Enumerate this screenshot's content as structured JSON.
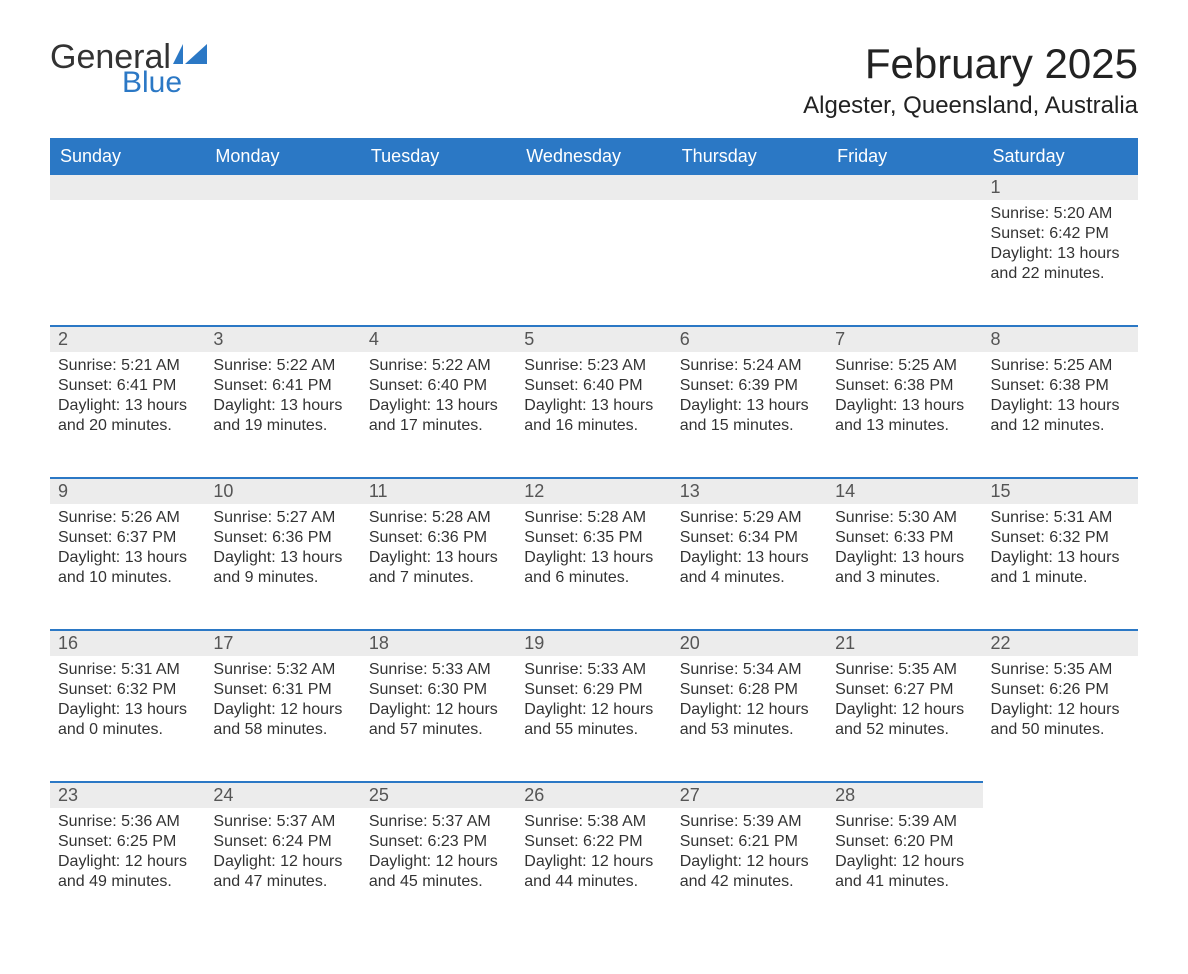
{
  "logo": {
    "word1": "General",
    "word2": "Blue"
  },
  "title": "February 2025",
  "location": "Algester, Queensland, Australia",
  "colors": {
    "brand_blue": "#2b78c5",
    "header_bg": "#2b78c5",
    "header_text": "#ffffff",
    "daynum_bg": "#ececec",
    "row_border": "#2b78c5",
    "body_text": "#333333",
    "page_bg": "#ffffff"
  },
  "typography": {
    "title_fontsize": 42,
    "location_fontsize": 24,
    "header_fontsize": 18,
    "daynum_fontsize": 18,
    "cell_fontsize": 16
  },
  "day_headers": [
    "Sunday",
    "Monday",
    "Tuesday",
    "Wednesday",
    "Thursday",
    "Friday",
    "Saturday"
  ],
  "weeks": [
    [
      null,
      null,
      null,
      null,
      null,
      null,
      {
        "n": "1",
        "sr": "Sunrise: 5:20 AM",
        "ss": "Sunset: 6:42 PM",
        "dl": "Daylight: 13 hours and 22 minutes."
      }
    ],
    [
      {
        "n": "2",
        "sr": "Sunrise: 5:21 AM",
        "ss": "Sunset: 6:41 PM",
        "dl": "Daylight: 13 hours and 20 minutes."
      },
      {
        "n": "3",
        "sr": "Sunrise: 5:22 AM",
        "ss": "Sunset: 6:41 PM",
        "dl": "Daylight: 13 hours and 19 minutes."
      },
      {
        "n": "4",
        "sr": "Sunrise: 5:22 AM",
        "ss": "Sunset: 6:40 PM",
        "dl": "Daylight: 13 hours and 17 minutes."
      },
      {
        "n": "5",
        "sr": "Sunrise: 5:23 AM",
        "ss": "Sunset: 6:40 PM",
        "dl": "Daylight: 13 hours and 16 minutes."
      },
      {
        "n": "6",
        "sr": "Sunrise: 5:24 AM",
        "ss": "Sunset: 6:39 PM",
        "dl": "Daylight: 13 hours and 15 minutes."
      },
      {
        "n": "7",
        "sr": "Sunrise: 5:25 AM",
        "ss": "Sunset: 6:38 PM",
        "dl": "Daylight: 13 hours and 13 minutes."
      },
      {
        "n": "8",
        "sr": "Sunrise: 5:25 AM",
        "ss": "Sunset: 6:38 PM",
        "dl": "Daylight: 13 hours and 12 minutes."
      }
    ],
    [
      {
        "n": "9",
        "sr": "Sunrise: 5:26 AM",
        "ss": "Sunset: 6:37 PM",
        "dl": "Daylight: 13 hours and 10 minutes."
      },
      {
        "n": "10",
        "sr": "Sunrise: 5:27 AM",
        "ss": "Sunset: 6:36 PM",
        "dl": "Daylight: 13 hours and 9 minutes."
      },
      {
        "n": "11",
        "sr": "Sunrise: 5:28 AM",
        "ss": "Sunset: 6:36 PM",
        "dl": "Daylight: 13 hours and 7 minutes."
      },
      {
        "n": "12",
        "sr": "Sunrise: 5:28 AM",
        "ss": "Sunset: 6:35 PM",
        "dl": "Daylight: 13 hours and 6 minutes."
      },
      {
        "n": "13",
        "sr": "Sunrise: 5:29 AM",
        "ss": "Sunset: 6:34 PM",
        "dl": "Daylight: 13 hours and 4 minutes."
      },
      {
        "n": "14",
        "sr": "Sunrise: 5:30 AM",
        "ss": "Sunset: 6:33 PM",
        "dl": "Daylight: 13 hours and 3 minutes."
      },
      {
        "n": "15",
        "sr": "Sunrise: 5:31 AM",
        "ss": "Sunset: 6:32 PM",
        "dl": "Daylight: 13 hours and 1 minute."
      }
    ],
    [
      {
        "n": "16",
        "sr": "Sunrise: 5:31 AM",
        "ss": "Sunset: 6:32 PM",
        "dl": "Daylight: 13 hours and 0 minutes."
      },
      {
        "n": "17",
        "sr": "Sunrise: 5:32 AM",
        "ss": "Sunset: 6:31 PM",
        "dl": "Daylight: 12 hours and 58 minutes."
      },
      {
        "n": "18",
        "sr": "Sunrise: 5:33 AM",
        "ss": "Sunset: 6:30 PM",
        "dl": "Daylight: 12 hours and 57 minutes."
      },
      {
        "n": "19",
        "sr": "Sunrise: 5:33 AM",
        "ss": "Sunset: 6:29 PM",
        "dl": "Daylight: 12 hours and 55 minutes."
      },
      {
        "n": "20",
        "sr": "Sunrise: 5:34 AM",
        "ss": "Sunset: 6:28 PM",
        "dl": "Daylight: 12 hours and 53 minutes."
      },
      {
        "n": "21",
        "sr": "Sunrise: 5:35 AM",
        "ss": "Sunset: 6:27 PM",
        "dl": "Daylight: 12 hours and 52 minutes."
      },
      {
        "n": "22",
        "sr": "Sunrise: 5:35 AM",
        "ss": "Sunset: 6:26 PM",
        "dl": "Daylight: 12 hours and 50 minutes."
      }
    ],
    [
      {
        "n": "23",
        "sr": "Sunrise: 5:36 AM",
        "ss": "Sunset: 6:25 PM",
        "dl": "Daylight: 12 hours and 49 minutes."
      },
      {
        "n": "24",
        "sr": "Sunrise: 5:37 AM",
        "ss": "Sunset: 6:24 PM",
        "dl": "Daylight: 12 hours and 47 minutes."
      },
      {
        "n": "25",
        "sr": "Sunrise: 5:37 AM",
        "ss": "Sunset: 6:23 PM",
        "dl": "Daylight: 12 hours and 45 minutes."
      },
      {
        "n": "26",
        "sr": "Sunrise: 5:38 AM",
        "ss": "Sunset: 6:22 PM",
        "dl": "Daylight: 12 hours and 44 minutes."
      },
      {
        "n": "27",
        "sr": "Sunrise: 5:39 AM",
        "ss": "Sunset: 6:21 PM",
        "dl": "Daylight: 12 hours and 42 minutes."
      },
      {
        "n": "28",
        "sr": "Sunrise: 5:39 AM",
        "ss": "Sunset: 6:20 PM",
        "dl": "Daylight: 12 hours and 41 minutes."
      },
      null
    ]
  ]
}
